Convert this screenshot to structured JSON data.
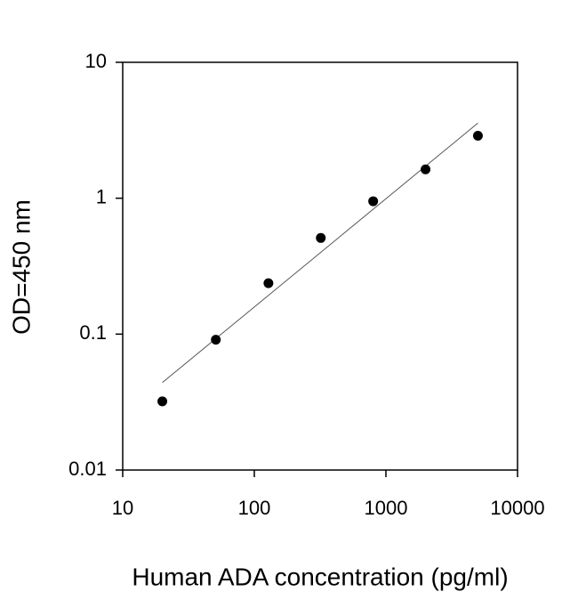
{
  "chart_data": {
    "type": "scatter",
    "x_label": "Human ADA concentration (pg/ml)",
    "y_label": "OD=450 nm",
    "x": [
      20,
      51,
      128,
      320,
      800,
      2000,
      5000
    ],
    "values": [
      0.032,
      0.091,
      0.237,
      0.51,
      0.95,
      1.63,
      2.88
    ],
    "color": "#000000",
    "trendline": {
      "x": [
        20,
        5000
      ],
      "values": [
        0.044,
        3.57
      ],
      "color": "#555555"
    },
    "xlim": [
      10,
      10000
    ],
    "xticks": [
      10,
      100,
      1000,
      10000
    ],
    "ylim": [
      0.01,
      10
    ],
    "yticks": [
      0.01,
      0.1,
      1,
      10
    ],
    "xscale": "log",
    "yscale": "log",
    "grid": false
  }
}
